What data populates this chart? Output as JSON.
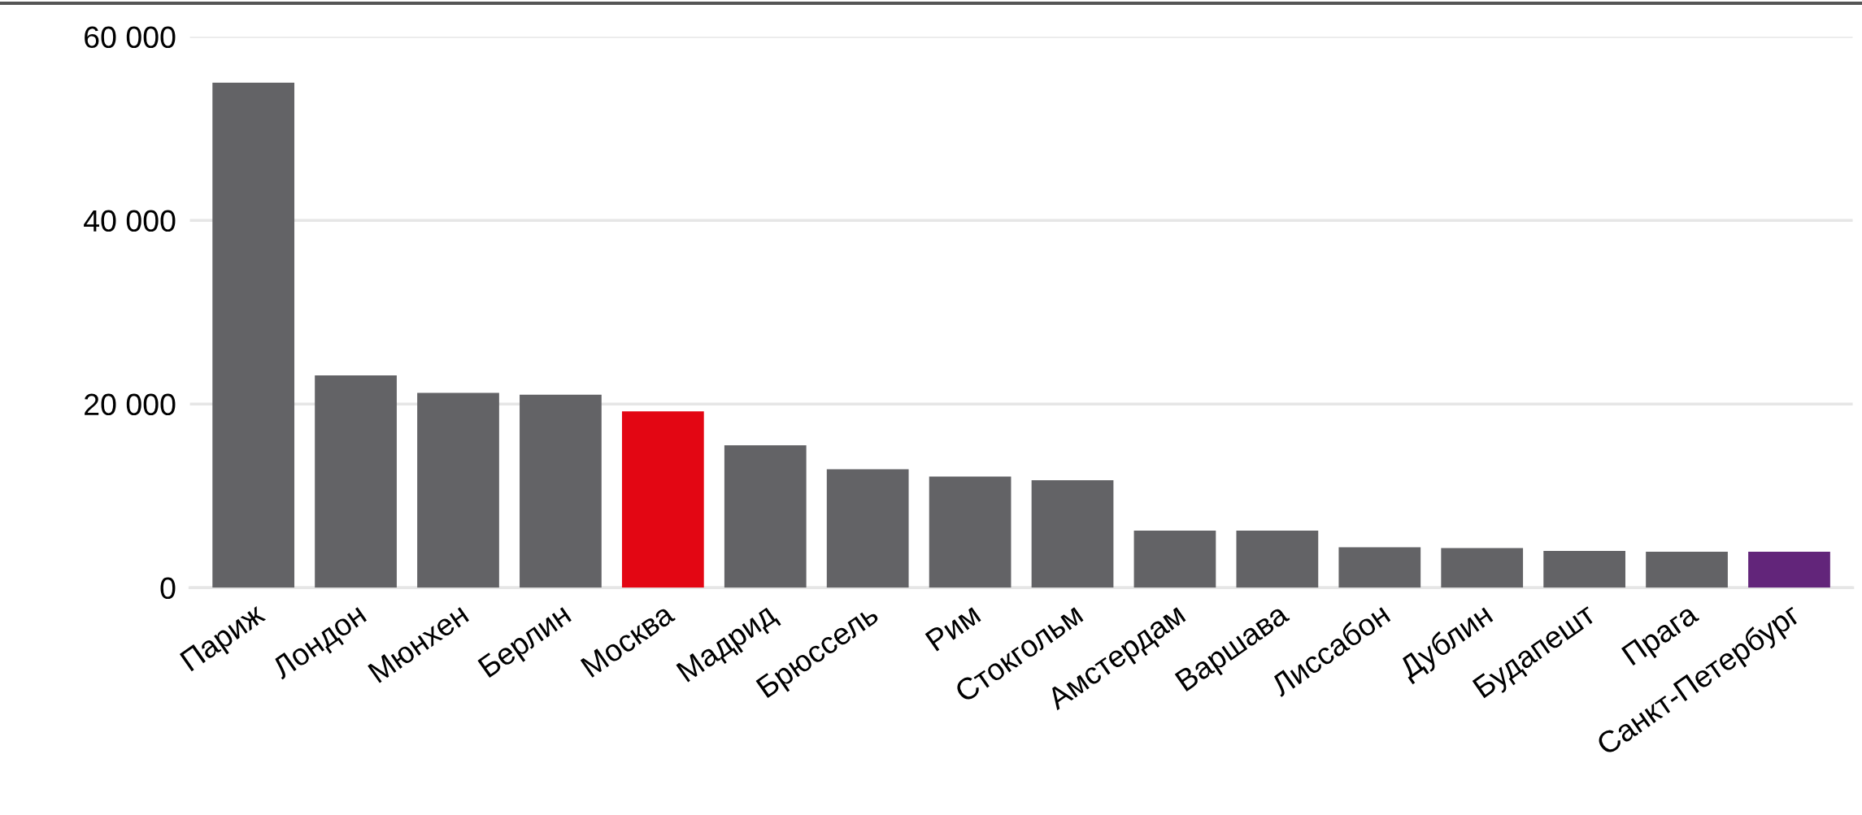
{
  "chart_data": {
    "type": "bar",
    "categories": [
      "Париж",
      "Лондон",
      "Мюнхен",
      "Берлин",
      "Москва",
      "Мадрид",
      "Брюссель",
      "Рим",
      "Стокгольм",
      "Амстердам",
      "Варшава",
      "Лиссабон",
      "Дублин",
      "Будапешт",
      "Прага",
      "Санкт-Петербург"
    ],
    "values": [
      55000,
      23100,
      21200,
      21000,
      19200,
      15500,
      12900,
      12100,
      11700,
      6200,
      6200,
      4400,
      4300,
      4000,
      3900,
      3900
    ],
    "colors": [
      "#636366",
      "#636366",
      "#636366",
      "#636366",
      "#e30613",
      "#636366",
      "#636366",
      "#636366",
      "#636366",
      "#636366",
      "#636366",
      "#636366",
      "#636366",
      "#636366",
      "#636366",
      "#62257a"
    ],
    "ylim": [
      0,
      60000
    ],
    "yticks": [
      0,
      {
        "value": 20000,
        "label": "20 000"
      },
      {
        "value": 40000,
        "label": "40 000"
      },
      {
        "value": 60000,
        "label": "60 000"
      }
    ],
    "grid": "y",
    "legend": false
  }
}
